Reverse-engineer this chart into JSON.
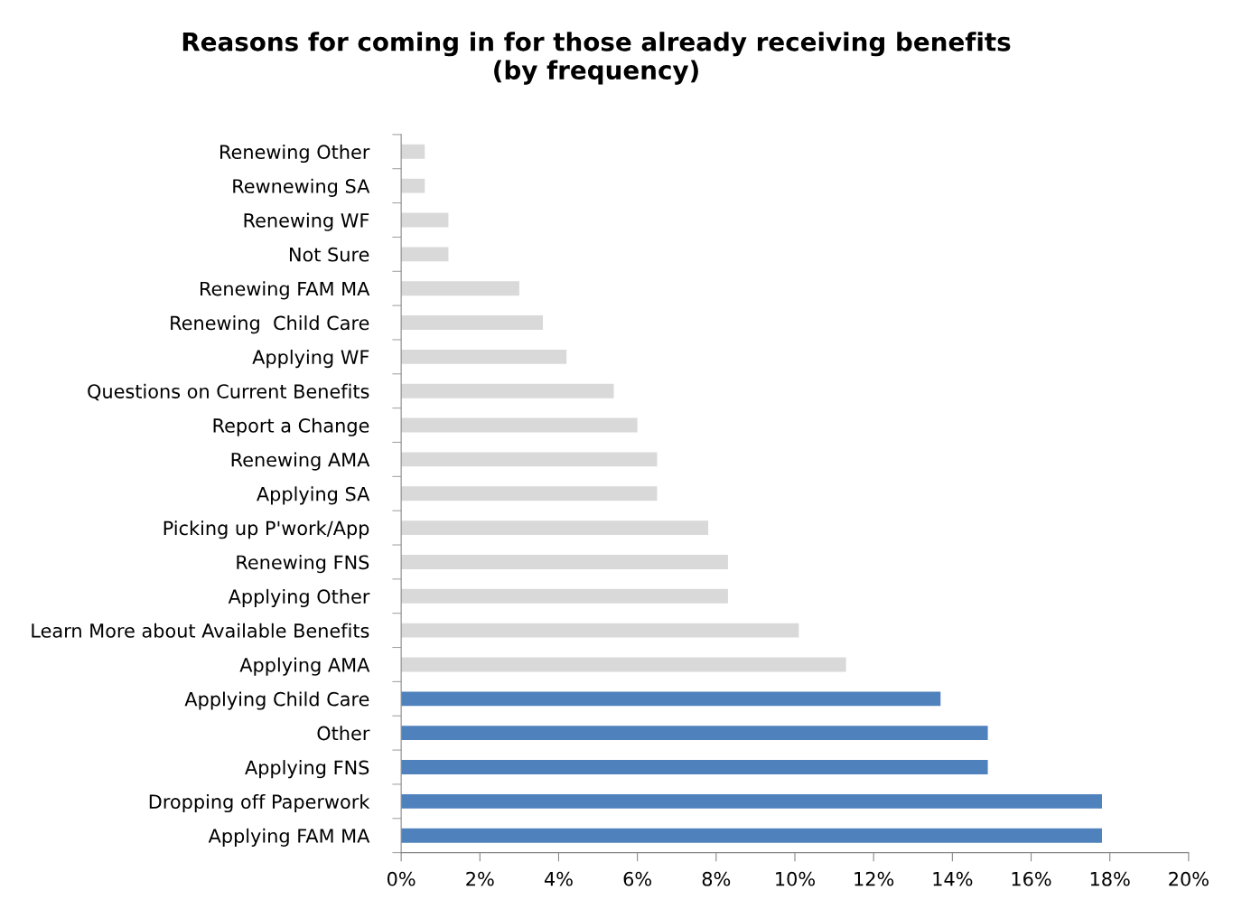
{
  "chart_data": {
    "type": "bar",
    "orientation": "horizontal",
    "title": "Reasons for coming in for those already receiving benefits\n(by frequency)",
    "categories": [
      "Renewing Other",
      "Rewnewing SA",
      "Renewing WF",
      "Not Sure",
      "Renewing FAM MA",
      "Renewing  Child Care",
      "Applying WF",
      "Questions on Current Benefits",
      "Report a Change",
      "Renewing AMA",
      "Applying SA",
      "Picking up P'work/App",
      "Renewing FNS",
      "Applying Other",
      "Learn More about Available Benefits",
      "Applying AMA",
      "Applying Child Care",
      "Other",
      "Applying FNS",
      "Dropping off Paperwork",
      "Applying FAM MA"
    ],
    "values": [
      0.6,
      0.6,
      1.2,
      1.2,
      3.0,
      3.6,
      4.2,
      5.4,
      6.0,
      6.5,
      6.5,
      7.8,
      8.3,
      8.3,
      10.1,
      11.3,
      13.7,
      14.9,
      14.9,
      17.8,
      17.8
    ],
    "colors": [
      "#d9d9d9",
      "#d9d9d9",
      "#d9d9d9",
      "#d9d9d9",
      "#d9d9d9",
      "#d9d9d9",
      "#d9d9d9",
      "#d9d9d9",
      "#d9d9d9",
      "#d9d9d9",
      "#d9d9d9",
      "#d9d9d9",
      "#d9d9d9",
      "#d9d9d9",
      "#d9d9d9",
      "#d9d9d9",
      "#4f81bd",
      "#4f81bd",
      "#4f81bd",
      "#4f81bd",
      "#4f81bd"
    ],
    "xlim": [
      0,
      20
    ],
    "xticks": [
      {
        "value": 0,
        "label": "0%"
      },
      {
        "value": 2,
        "label": "2%"
      },
      {
        "value": 4,
        "label": "4%"
      },
      {
        "value": 6,
        "label": "6%"
      },
      {
        "value": 8,
        "label": "8%"
      },
      {
        "value": 10,
        "label": "10%"
      },
      {
        "value": 12,
        "label": "12%"
      },
      {
        "value": 14,
        "label": "14%"
      },
      {
        "value": 16,
        "label": "16%"
      },
      {
        "value": 18,
        "label": "18%"
      },
      {
        "value": 20,
        "label": "20%"
      }
    ],
    "grid": false,
    "legend": false
  }
}
